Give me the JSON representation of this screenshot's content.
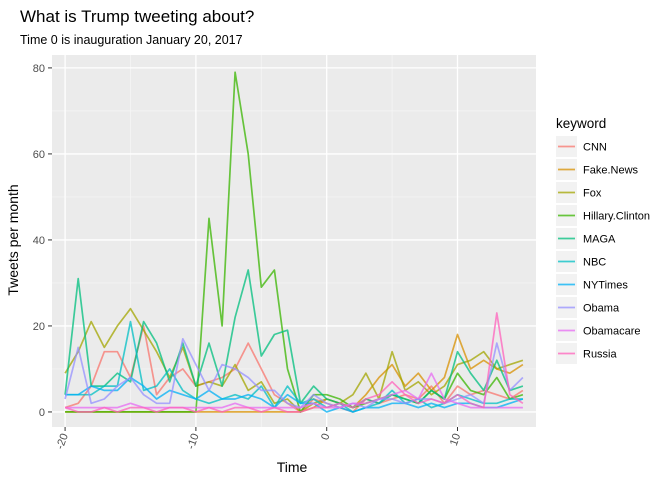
{
  "chart_data": {
    "type": "line",
    "title": "What is Trump tweeting about?",
    "subtitle": "Time 0 is inauguration January 20, 2017",
    "xlabel": "Time",
    "ylabel": "Tweets per month",
    "xlim": [
      -21,
      16
    ],
    "ylim": [
      -3.5,
      83
    ],
    "xticks": [
      -20,
      -10,
      0,
      10
    ],
    "yticks": [
      0,
      20,
      40,
      60,
      80
    ],
    "grid": true,
    "legend": {
      "title": "keyword",
      "position": "right"
    },
    "x": [
      -20,
      -19,
      -18,
      -17,
      -16,
      -15,
      -14,
      -13,
      -12,
      -11,
      -10,
      -9,
      -8,
      -7,
      -6,
      -5,
      -4,
      -3,
      -2,
      -1,
      0,
      1,
      2,
      3,
      4,
      5,
      6,
      7,
      8,
      9,
      10,
      11,
      12,
      13,
      14,
      15
    ],
    "series": [
      {
        "name": "CNN",
        "color": "#F8766D",
        "values": [
          1,
          2,
          6,
          14,
          14,
          8,
          20,
          4,
          8,
          10,
          6,
          7,
          8,
          10,
          16,
          10,
          4,
          2,
          0,
          3,
          2,
          1,
          0,
          3,
          2,
          3,
          4,
          3,
          6,
          2,
          6,
          4,
          5,
          4,
          3,
          5
        ]
      },
      {
        "name": "Fake.News",
        "color": "#D89000",
        "values": [
          0,
          0,
          0,
          0,
          0,
          0,
          0,
          0,
          0,
          0,
          0,
          0,
          0,
          0,
          0,
          0,
          0,
          0,
          0,
          1,
          3,
          2,
          1,
          4,
          8,
          11,
          6,
          9,
          5,
          8,
          18,
          10,
          12,
          10,
          9,
          11
        ]
      },
      {
        "name": "Fox",
        "color": "#A3A500",
        "values": [
          9,
          14,
          21,
          15,
          20,
          24,
          19,
          14,
          8,
          15,
          6,
          7,
          6,
          11,
          5,
          7,
          2,
          3,
          0,
          2,
          3,
          2,
          4,
          9,
          3,
          14,
          5,
          7,
          4,
          6,
          11,
          12,
          14,
          10,
          11,
          12
        ]
      },
      {
        "name": "Hillary.Clinton",
        "color": "#39B600",
        "values": [
          0,
          0,
          0,
          0,
          0,
          0,
          0,
          0,
          0,
          0,
          0,
          45,
          20,
          79,
          60,
          29,
          33,
          10,
          0,
          4,
          4,
          3,
          1,
          2,
          3,
          4,
          3,
          2,
          5,
          3,
          9,
          5,
          4,
          8,
          3,
          4
        ]
      },
      {
        "name": "MAGA",
        "color": "#00BF7D",
        "values": [
          4,
          31,
          6,
          6,
          9,
          7,
          21,
          16,
          7,
          16,
          6,
          16,
          6,
          22,
          33,
          13,
          18,
          19,
          2,
          6,
          3,
          2,
          1,
          3,
          2,
          4,
          3,
          2,
          5,
          3,
          14,
          9,
          5,
          12,
          5,
          6
        ]
      },
      {
        "name": "NBC",
        "color": "#00BFC4",
        "values": [
          4,
          4,
          4,
          6,
          6,
          21,
          5,
          6,
          10,
          5,
          3,
          2,
          3,
          4,
          3,
          6,
          1,
          6,
          2,
          3,
          1,
          2,
          0,
          1,
          2,
          5,
          2,
          3,
          1,
          2,
          4,
          3,
          2,
          2,
          3,
          3
        ]
      },
      {
        "name": "NYTimes",
        "color": "#00B0F6",
        "values": [
          4,
          4,
          6,
          5,
          5,
          8,
          6,
          3,
          5,
          4,
          3,
          5,
          3,
          3,
          4,
          3,
          1,
          4,
          2,
          2,
          0,
          1,
          0,
          1,
          1,
          2,
          2,
          1,
          2,
          1,
          2,
          2,
          1,
          1,
          2,
          3
        ]
      },
      {
        "name": "Obama",
        "color": "#9590FF",
        "values": [
          3,
          15,
          2,
          3,
          6,
          8,
          4,
          2,
          2,
          17,
          11,
          5,
          11,
          10,
          8,
          5,
          5,
          2,
          1,
          4,
          2,
          1,
          2,
          1,
          3,
          3,
          2,
          3,
          3,
          2,
          3,
          4,
          2,
          16,
          5,
          8
        ]
      },
      {
        "name": "Obamacare",
        "color": "#E76BF3",
        "values": [
          1,
          1,
          1,
          1,
          1,
          2,
          1,
          1,
          1,
          1,
          1,
          1,
          1,
          2,
          1,
          1,
          1,
          1,
          1,
          2,
          1,
          1,
          2,
          2,
          3,
          4,
          5,
          3,
          9,
          3,
          2,
          1,
          1,
          1,
          1,
          1
        ]
      },
      {
        "name": "Russia",
        "color": "#FF62BC",
        "values": [
          1,
          0,
          0,
          1,
          0,
          1,
          1,
          0,
          1,
          1,
          0,
          1,
          0,
          1,
          1,
          0,
          1,
          0,
          0,
          1,
          1,
          2,
          1,
          3,
          4,
          7,
          4,
          2,
          3,
          2,
          4,
          2,
          1,
          23,
          4,
          2
        ]
      }
    ]
  }
}
